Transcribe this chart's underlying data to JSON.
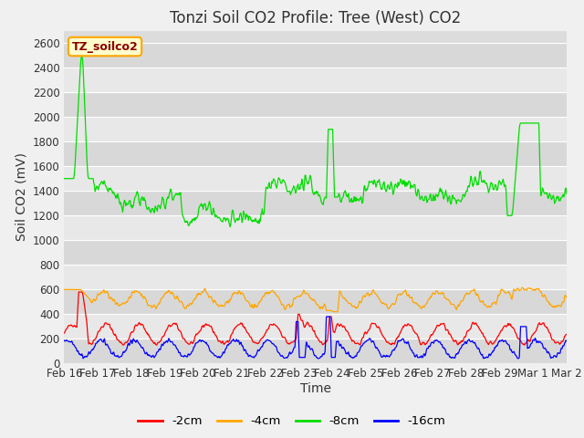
{
  "title": "Tonzi Soil CO2 Profile: Tree (West) CO2",
  "ylabel": "Soil CO2 (mV)",
  "xlabel": "Time",
  "annotation": "TZ_soilco2",
  "ylim": [
    0,
    2700
  ],
  "yticks": [
    0,
    200,
    400,
    600,
    800,
    1000,
    1200,
    1400,
    1600,
    1800,
    2000,
    2200,
    2400,
    2600
  ],
  "colors": {
    "-2cm": "#ff0000",
    "-4cm": "#ffa500",
    "-8cm": "#00dd00",
    "-16cm": "#0000ff"
  },
  "legend_labels": [
    "-2cm",
    "-4cm",
    "-8cm",
    "-16cm"
  ],
  "fig_bg": "#f0f0f0",
  "plot_bg": "#dcdcdc",
  "n_points": 800,
  "xtick_labels": [
    "Feb 16",
    "Feb 17",
    "Feb 18",
    "Feb 19",
    "Feb 20",
    "Feb 21",
    "Feb 22",
    "Feb 23",
    "Feb 24",
    "Feb 25",
    "Feb 26",
    "Feb 27",
    "Feb 28",
    "Feb 29",
    "Mar 1",
    "Mar 2"
  ],
  "title_fontsize": 12,
  "label_fontsize": 10,
  "tick_fontsize": 8.5
}
